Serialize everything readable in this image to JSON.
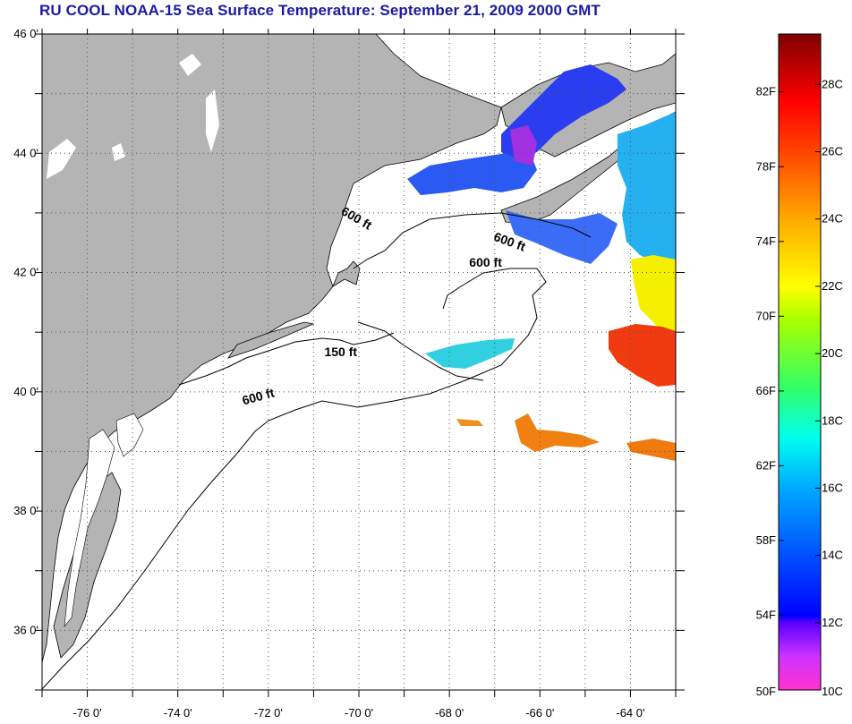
{
  "title": "RU COOL  NOAA-15  Sea Surface Temperature:  September 21, 2009 2000 GMT",
  "map": {
    "lat_range": [
      35,
      46
    ],
    "lon_range": [
      -77,
      -63
    ],
    "lat_ticks": [
      {
        "value": 46,
        "label": "46 0'"
      },
      {
        "value": 44,
        "label": "44 0'"
      },
      {
        "value": 42,
        "label": "42 0'"
      },
      {
        "value": 40,
        "label": "40 0'"
      },
      {
        "value": 38,
        "label": "38 0'"
      },
      {
        "value": 36,
        "label": "36 0'"
      }
    ],
    "lon_ticks": [
      {
        "value": -76,
        "label": "-76 0'"
      },
      {
        "value": -74,
        "label": "-74 0'"
      },
      {
        "value": -72,
        "label": "-72 0'"
      },
      {
        "value": -70,
        "label": "-70 0'"
      },
      {
        "value": -68,
        "label": "-68 0'"
      },
      {
        "value": -66,
        "label": "-66 0'"
      },
      {
        "value": -64,
        "label": "-64 0'"
      }
    ],
    "land_color": "#b4b4b4",
    "ocean_color": "#ffffff",
    "contour_labels": [
      {
        "text": "600 ft",
        "lon": -70.1,
        "lat": 42.85,
        "angle": 30
      },
      {
        "text": "600 ft",
        "lon": -66.7,
        "lat": 42.45,
        "angle": 20
      },
      {
        "text": "600 ft",
        "lon": -67.2,
        "lat": 42.1,
        "angle": 0
      },
      {
        "text": "150 ft",
        "lon": -70.4,
        "lat": 40.6,
        "angle": 0
      },
      {
        "text": "600 ft",
        "lon": -72.2,
        "lat": 39.85,
        "angle": -15
      }
    ]
  },
  "colorbar": {
    "min_c": 10,
    "max_c": 29.5,
    "celsius_ticks": [
      {
        "value": 28,
        "label": "28C"
      },
      {
        "value": 26,
        "label": "26C"
      },
      {
        "value": 24,
        "label": "24C"
      },
      {
        "value": 22,
        "label": "22C"
      },
      {
        "value": 20,
        "label": "20C"
      },
      {
        "value": 18,
        "label": "18C"
      },
      {
        "value": 16,
        "label": "16C"
      },
      {
        "value": 14,
        "label": "14C"
      },
      {
        "value": 12,
        "label": "12C"
      },
      {
        "value": 10,
        "label": "10C"
      }
    ],
    "fahrenheit_ticks": [
      {
        "value": 82,
        "label": "82F"
      },
      {
        "value": 78,
        "label": "78F"
      },
      {
        "value": 74,
        "label": "74F"
      },
      {
        "value": 70,
        "label": "70F"
      },
      {
        "value": 66,
        "label": "66F"
      },
      {
        "value": 62,
        "label": "62F"
      },
      {
        "value": 58,
        "label": "58F"
      },
      {
        "value": 54,
        "label": "54F"
      },
      {
        "value": 50,
        "label": "50F"
      }
    ],
    "gradient_stops": [
      {
        "c": 10,
        "color": "#ff33cc"
      },
      {
        "c": 11,
        "color": "#cc33ff"
      },
      {
        "c": 12,
        "color": "#5a00ff"
      },
      {
        "c": 12.2,
        "color": "#0000ff"
      },
      {
        "c": 14,
        "color": "#0050ff"
      },
      {
        "c": 16,
        "color": "#00aaff"
      },
      {
        "c": 17.5,
        "color": "#00ffee"
      },
      {
        "c": 19,
        "color": "#33ff66"
      },
      {
        "c": 21,
        "color": "#aaff00"
      },
      {
        "c": 22,
        "color": "#ffff00"
      },
      {
        "c": 24,
        "color": "#ffaa00"
      },
      {
        "c": 26,
        "color": "#ff4400"
      },
      {
        "c": 27.5,
        "color": "#ff0000"
      },
      {
        "c": 29.5,
        "color": "#800000"
      }
    ]
  },
  "sst_patches": [
    {
      "region": "bay-of-fundy",
      "c": 13.6,
      "color": "#2b3df0"
    },
    {
      "region": "gulf-of-maine-north",
      "c": 13.8,
      "color": "#2a5af2"
    },
    {
      "region": "fundy-cold-core",
      "c": 11.5,
      "color": "#a030e0"
    },
    {
      "region": "nova-scotia-shelf",
      "c": 14.5,
      "color": "#3a6cf8"
    },
    {
      "region": "scotian-slope",
      "c": 16.2,
      "color": "#25b0f0"
    },
    {
      "region": "slope-warm",
      "c": 21.8,
      "color": "#f5f000"
    },
    {
      "region": "gulf-stream-core",
      "c": 26.6,
      "color": "#f03a10"
    },
    {
      "region": "georges-bank-south",
      "c": 17.0,
      "color": "#30d0e0"
    },
    {
      "region": "warm-eddy-east",
      "c": 24.6,
      "color": "#f08010"
    },
    {
      "region": "warm-filament-south",
      "c": 24.8,
      "color": "#f07a10"
    }
  ]
}
